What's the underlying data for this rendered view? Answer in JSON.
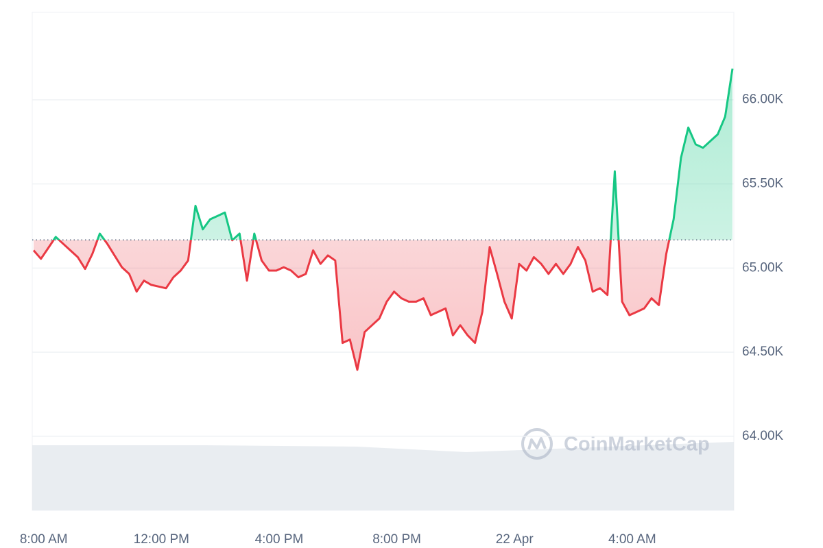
{
  "chart_data": {
    "type": "line",
    "categories": [
      "07:45",
      "08:00",
      "08:15",
      "08:30",
      "08:45",
      "09:00",
      "09:15",
      "09:30",
      "09:45",
      "10:00",
      "10:15",
      "10:30",
      "10:45",
      "11:00",
      "11:15",
      "11:30",
      "11:45",
      "12:00",
      "12:15",
      "12:30",
      "12:45",
      "13:00",
      "13:15",
      "13:30",
      "13:45",
      "14:00",
      "14:15",
      "14:30",
      "14:45",
      "15:00",
      "15:15",
      "15:30",
      "15:45",
      "16:00",
      "16:15",
      "16:30",
      "16:45",
      "17:00",
      "17:15",
      "17:30",
      "17:45",
      "18:00",
      "18:15",
      "18:30",
      "18:45",
      "19:00",
      "19:15",
      "19:30",
      "19:45",
      "20:00",
      "20:15",
      "20:30",
      "20:45",
      "21:00",
      "21:15",
      "21:30",
      "21:45",
      "22:00",
      "22:15",
      "22:30",
      "22:45",
      "23:00",
      "23:15",
      "23:30",
      "23:45",
      "00:00",
      "00:15",
      "00:30",
      "00:45",
      "01:00",
      "01:15",
      "01:30",
      "01:45",
      "02:00",
      "02:15",
      "02:30",
      "02:45",
      "03:00",
      "03:15",
      "03:30",
      "03:45",
      "04:00",
      "04:15",
      "04:30",
      "04:45",
      "05:00",
      "05:15",
      "05:30",
      "05:45",
      "06:00",
      "06:15",
      "06:30",
      "06:45",
      "07:00",
      "07:15",
      "07:30"
    ],
    "values": [
      65105,
      65055,
      65120,
      65185,
      65145,
      65105,
      65065,
      64995,
      65085,
      65205,
      65145,
      65075,
      65005,
      64965,
      64860,
      64925,
      64900,
      64890,
      64880,
      64945,
      64985,
      65045,
      65370,
      65230,
      65290,
      65310,
      65330,
      65165,
      65205,
      64925,
      65205,
      65045,
      64985,
      64985,
      65005,
      64985,
      64945,
      64965,
      65105,
      65025,
      65075,
      65045,
      64555,
      64575,
      64395,
      64620,
      64660,
      64700,
      64800,
      64860,
      64820,
      64800,
      64800,
      64820,
      64720,
      64740,
      64760,
      64600,
      64660,
      64600,
      64555,
      64740,
      65125,
      64965,
      64800,
      64700,
      65025,
      64985,
      65065,
      65025,
      64965,
      65025,
      64965,
      65025,
      65125,
      65045,
      64860,
      64880,
      64840,
      65575,
      64800,
      64720,
      64740,
      64760,
      64820,
      64780,
      65085,
      65290,
      65655,
      65835,
      65735,
      65715,
      65755,
      65795,
      65900,
      66185
    ],
    "baseline": 65167,
    "up_color": "#16c784",
    "down_color": "#ea3943",
    "ylim": [
      63560,
      66520
    ],
    "yticks": [
      {
        "value": 64000,
        "label": "64.00K"
      },
      {
        "value": 64500,
        "label": "64.50K"
      },
      {
        "value": 65000,
        "label": "65.00K"
      },
      {
        "value": 65500,
        "label": "65.50K"
      },
      {
        "value": 66000,
        "label": "66.00K"
      }
    ],
    "xticks": [
      {
        "value": "08:00",
        "label": "8:00 AM"
      },
      {
        "value": "12:00",
        "label": "12:00 PM"
      },
      {
        "value": "16:00",
        "label": "4:00 PM"
      },
      {
        "value": "20:00",
        "label": "8:00 PM"
      },
      {
        "value": "00:00",
        "label": "22 Apr"
      },
      {
        "value": "04:00",
        "label": "4:00 AM"
      }
    ],
    "grid": true,
    "watermark": "CoinMarketCap"
  }
}
